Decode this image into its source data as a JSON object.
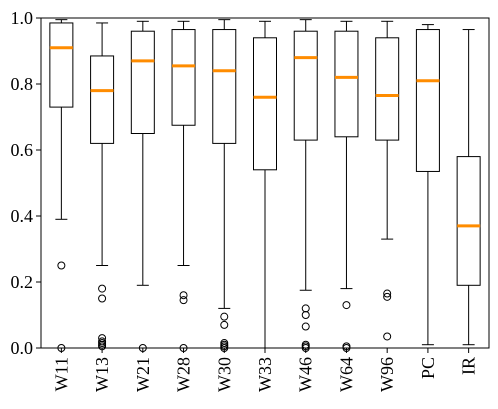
{
  "chart_data": {
    "type": "box",
    "title": "",
    "xlabel": "",
    "ylabel": "",
    "ylim": [
      0.0,
      1.0
    ],
    "yticks": [
      0.0,
      0.2,
      0.4,
      0.6,
      0.8,
      1.0
    ],
    "ytick_labels": [
      "0.0",
      "0.2",
      "0.4",
      "0.6",
      "0.8",
      "1.0"
    ],
    "grid": false,
    "colors": {
      "box": "#000000",
      "median": "#ff8c00",
      "axes": "#000000"
    },
    "categories": [
      "W11",
      "W13",
      "W21",
      "W28",
      "W30",
      "W33",
      "W46",
      "W64",
      "W96",
      "PC",
      "IR"
    ],
    "boxes": [
      {
        "label": "W11",
        "whisker_low": 0.39,
        "q1": 0.73,
        "median": 0.91,
        "q3": 0.985,
        "whisker_high": 0.995,
        "outliers": [
          0.25,
          0.0
        ]
      },
      {
        "label": "W13",
        "whisker_low": 0.25,
        "q1": 0.62,
        "median": 0.78,
        "q3": 0.885,
        "whisker_high": 0.985,
        "outliers": [
          0.18,
          0.15,
          0.03,
          0.02,
          0.015,
          0.01,
          0.005
        ]
      },
      {
        "label": "W21",
        "whisker_low": 0.19,
        "q1": 0.65,
        "median": 0.87,
        "q3": 0.96,
        "whisker_high": 0.99,
        "outliers": [
          0.0
        ]
      },
      {
        "label": "W28",
        "whisker_low": 0.25,
        "q1": 0.675,
        "median": 0.855,
        "q3": 0.965,
        "whisker_high": 0.99,
        "outliers": [
          0.16,
          0.145,
          0.0
        ]
      },
      {
        "label": "W30",
        "whisker_low": 0.12,
        "q1": 0.62,
        "median": 0.84,
        "q3": 0.965,
        "whisker_high": 0.995,
        "outliers": [
          0.095,
          0.07,
          0.015,
          0.01,
          0.005,
          0.0
        ]
      },
      {
        "label": "W33",
        "whisker_low": 0.0,
        "q1": 0.54,
        "median": 0.76,
        "q3": 0.94,
        "whisker_high": 0.99,
        "outliers": []
      },
      {
        "label": "W46",
        "whisker_low": 0.175,
        "q1": 0.63,
        "median": 0.88,
        "q3": 0.96,
        "whisker_high": 0.995,
        "outliers": [
          0.12,
          0.1,
          0.065,
          0.01,
          0.005,
          0.0
        ]
      },
      {
        "label": "W64",
        "whisker_low": 0.18,
        "q1": 0.64,
        "median": 0.82,
        "q3": 0.96,
        "whisker_high": 0.99,
        "outliers": [
          0.13,
          0.005,
          0.0
        ]
      },
      {
        "label": "W96",
        "whisker_low": 0.33,
        "q1": 0.63,
        "median": 0.765,
        "q3": 0.94,
        "whisker_high": 0.99,
        "outliers": [
          0.165,
          0.155,
          0.035
        ]
      },
      {
        "label": "PC",
        "whisker_low": 0.01,
        "q1": 0.535,
        "median": 0.81,
        "q3": 0.965,
        "whisker_high": 0.98,
        "outliers": []
      },
      {
        "label": "IR",
        "whisker_low": 0.01,
        "q1": 0.19,
        "median": 0.37,
        "q3": 0.58,
        "whisker_high": 0.965,
        "outliers": []
      }
    ]
  }
}
